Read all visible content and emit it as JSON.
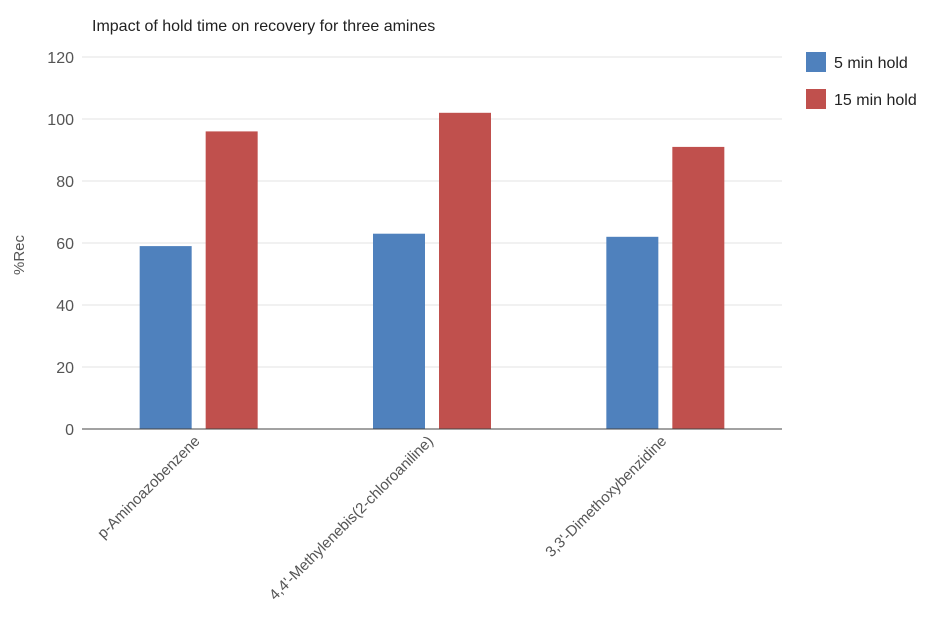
{
  "chart_data": {
    "type": "bar",
    "title": "Impact of hold time on recovery for three amines",
    "xlabel": "",
    "ylabel": "%Rec",
    "categories": [
      "p-Aminoazobenzene",
      "4,4'-Methylenebis(2-chloroaniline)",
      "3,3'-Dimethoxybenzidine"
    ],
    "series": [
      {
        "name": "5 min hold",
        "values": [
          59,
          63,
          62
        ],
        "color": "#4f81bd"
      },
      {
        "name": "15 min hold",
        "values": [
          96,
          102,
          91
        ],
        "color": "#c0504d"
      }
    ],
    "ylim": [
      0,
      120
    ],
    "yticks": [
      0,
      20,
      40,
      60,
      80,
      100,
      120
    ],
    "grid": true,
    "legend_position": "top-right"
  }
}
